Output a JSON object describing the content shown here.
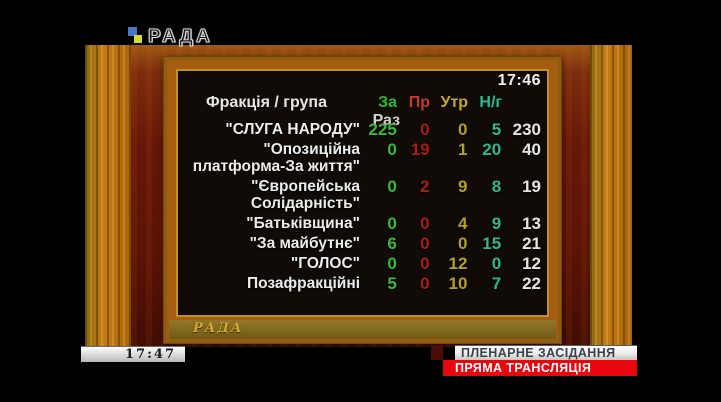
{
  "logo": {
    "text": "РАДА"
  },
  "board": {
    "clock": "17:46",
    "frame_brand": "РАДА",
    "table": {
      "faction_header": "Фракція / група",
      "columns": [
        {
          "label": "За",
          "header_color": "#2db82d",
          "value_color": "#3ab83a"
        },
        {
          "label": "Пр",
          "header_color": "#c23a28",
          "value_color": "#a81e10"
        },
        {
          "label": "Утр",
          "header_color": "#c2a82e",
          "value_color": "#b2a028"
        },
        {
          "label": "Н/г",
          "header_color": "#2cb890",
          "value_color": "#2cb890"
        },
        {
          "label": "Раз",
          "header_color": "#d2d2d2",
          "value_color": "#e4e4e4"
        }
      ],
      "rows": [
        {
          "name_lines": [
            "\"СЛУГА НАРОДУ\""
          ],
          "values": [
            "225",
            "0",
            "0",
            "5",
            "230"
          ]
        },
        {
          "name_lines": [
            "\"Опозиційна",
            "платформа-За життя\""
          ],
          "values": [
            "0",
            "19",
            "1",
            "20",
            "40"
          ]
        },
        {
          "name_lines": [
            "\"Європейська",
            "Солідарність\""
          ],
          "values": [
            "0",
            "2",
            "9",
            "8",
            "19"
          ]
        },
        {
          "name_lines": [
            "\"Батьківщина\""
          ],
          "values": [
            "0",
            "0",
            "4",
            "9",
            "13"
          ]
        },
        {
          "name_lines": [
            "\"За майбутнє\""
          ],
          "values": [
            "6",
            "0",
            "0",
            "15",
            "21"
          ]
        },
        {
          "name_lines": [
            "\"ГОЛОС\""
          ],
          "values": [
            "0",
            "0",
            "12",
            "0",
            "12"
          ]
        },
        {
          "name_lines": [
            "Позафракційні"
          ],
          "values": [
            "5",
            "0",
            "10",
            "7",
            "22"
          ]
        }
      ]
    }
  },
  "overlay": {
    "clock": "17:47",
    "session_badge": "ПЛЕНАРНЕ ЗАСІДАННЯ",
    "live_badge": "ПРЯМА ТРАНСЛЯЦІЯ"
  },
  "colors": {
    "live_red": "#e8070f",
    "board_gold": "#bf912a",
    "wood_dark": "#5a1305"
  }
}
